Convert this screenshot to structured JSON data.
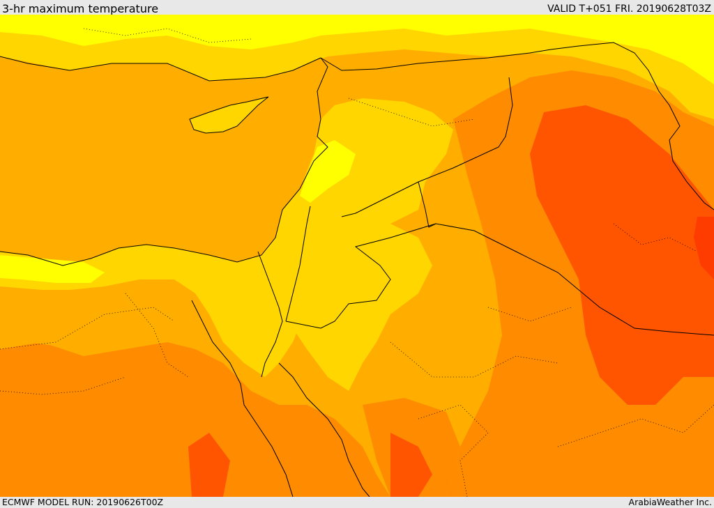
{
  "header": {
    "title": "3-hr maximum temperature",
    "valid": "VALID T+051 FRI. 20190628T03Z"
  },
  "footer": {
    "model_run": "ECMWF MODEL RUN: 20190626T00Z",
    "credit": "ArabiaWeather Inc."
  },
  "colors": {
    "sea_orange": "#ffae00",
    "light_yellow": "#ffff00",
    "yellow": "#ffd600",
    "orange": "#ff8c00",
    "deep_orange": "#ff5500",
    "red_orange": "#ff3c00",
    "border_line": "#000000"
  }
}
